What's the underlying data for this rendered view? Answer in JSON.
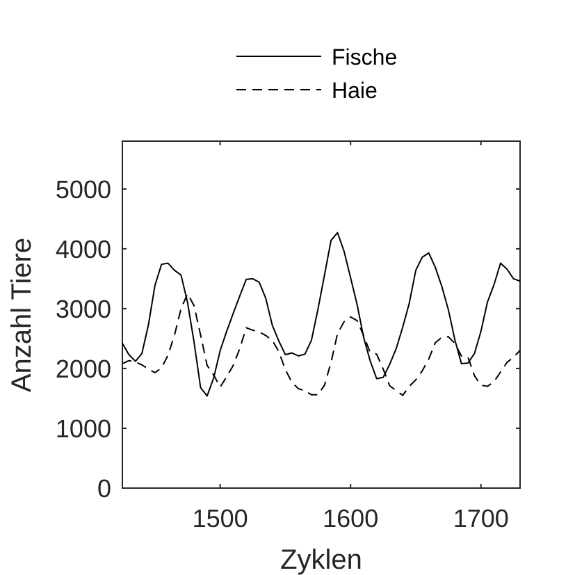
{
  "chart_data": {
    "type": "line",
    "title": "",
    "xlabel": "Zyklen",
    "ylabel": "Anzahl Tiere",
    "xlim": [
      1425,
      1730
    ],
    "ylim": [
      0,
      5800
    ],
    "xticks": [
      1500,
      1600,
      1700
    ],
    "yticks": [
      0,
      1000,
      2000,
      3000,
      4000,
      5000
    ],
    "xtick_labels": [
      "1500",
      "1600",
      "1700"
    ],
    "ytick_labels": [
      "0",
      "1000",
      "2000",
      "3000",
      "4000",
      "5000"
    ],
    "grid": false,
    "legend_position": "top, outside plot area",
    "series": [
      {
        "name": "Fische",
        "style": "solid",
        "color": "#000000",
        "x": [
          1425,
          1430,
          1435,
          1440,
          1445,
          1450,
          1455,
          1460,
          1465,
          1470,
          1475,
          1480,
          1485,
          1490,
          1495,
          1500,
          1505,
          1510,
          1515,
          1520,
          1525,
          1530,
          1535,
          1540,
          1545,
          1550,
          1555,
          1560,
          1565,
          1570,
          1575,
          1580,
          1585,
          1590,
          1595,
          1600,
          1605,
          1610,
          1615,
          1620,
          1625,
          1630,
          1635,
          1640,
          1645,
          1650,
          1655,
          1660,
          1665,
          1670,
          1675,
          1680,
          1685,
          1690,
          1695,
          1700,
          1705,
          1710,
          1715,
          1720,
          1725,
          1730
        ],
        "y": [
          2420,
          2230,
          2120,
          2250,
          2730,
          3390,
          3740,
          3760,
          3640,
          3560,
          3100,
          2440,
          1680,
          1540,
          1840,
          2300,
          2620,
          2920,
          3210,
          3490,
          3500,
          3440,
          3170,
          2720,
          2460,
          2230,
          2260,
          2210,
          2240,
          2470,
          2990,
          3560,
          4140,
          4270,
          3960,
          3520,
          3070,
          2520,
          2130,
          1830,
          1850,
          2070,
          2330,
          2690,
          3090,
          3640,
          3860,
          3930,
          3690,
          3370,
          2980,
          2480,
          2080,
          2090,
          2250,
          2620,
          3110,
          3400,
          3760,
          3660,
          3500,
          3460
        ]
      },
      {
        "name": "Haie",
        "style": "dashed",
        "color": "#000000",
        "x": [
          1425,
          1430,
          1435,
          1440,
          1445,
          1450,
          1455,
          1460,
          1465,
          1470,
          1475,
          1480,
          1485,
          1490,
          1495,
          1500,
          1505,
          1510,
          1515,
          1520,
          1525,
          1530,
          1535,
          1540,
          1545,
          1550,
          1555,
          1560,
          1565,
          1570,
          1575,
          1580,
          1585,
          1590,
          1595,
          1600,
          1605,
          1610,
          1615,
          1620,
          1625,
          1630,
          1635,
          1640,
          1645,
          1650,
          1655,
          1660,
          1665,
          1670,
          1675,
          1680,
          1685,
          1690,
          1695,
          1700,
          1705,
          1710,
          1715,
          1720,
          1725,
          1730
        ],
        "y": [
          2080,
          2130,
          2110,
          2060,
          1990,
          1930,
          2010,
          2220,
          2560,
          3000,
          3250,
          3050,
          2560,
          2050,
          1890,
          1690,
          1860,
          2050,
          2330,
          2680,
          2640,
          2610,
          2550,
          2470,
          2280,
          1980,
          1770,
          1660,
          1630,
          1560,
          1560,
          1720,
          2100,
          2580,
          2780,
          2860,
          2800,
          2550,
          2270,
          2240,
          1990,
          1710,
          1630,
          1550,
          1700,
          1810,
          1960,
          2160,
          2430,
          2520,
          2530,
          2420,
          2210,
          2190,
          1880,
          1720,
          1700,
          1780,
          1940,
          2100,
          2190,
          2300
        ]
      }
    ]
  }
}
